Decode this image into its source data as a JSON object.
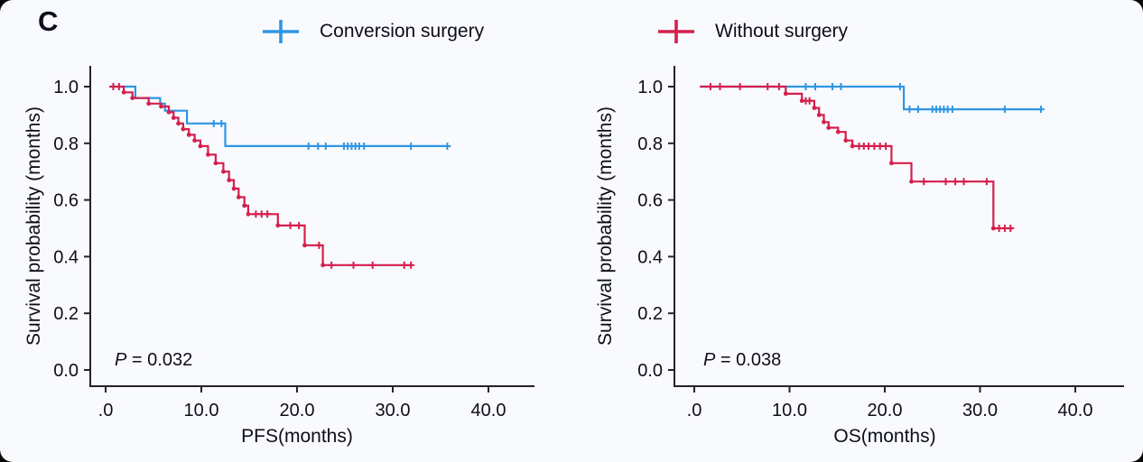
{
  "panel_label": "C",
  "colors": {
    "conversion": "#2e96e4",
    "without": "#d51f4d",
    "text": "#0d0d1c",
    "axis": "#23232e",
    "background": "#f9fafd"
  },
  "legend": {
    "items": [
      {
        "id": "conversion",
        "label": "Conversion surgery"
      },
      {
        "id": "without",
        "label": "Without surgery"
      }
    ]
  },
  "chart_data": [
    {
      "type": "line",
      "subtype": "kaplan_meier_step",
      "title": "",
      "xlabel": "PFS(months)",
      "ylabel": "Survival probability (months)",
      "p_italic": "P",
      "p_rest": " = 0.032",
      "xlim": [
        0,
        40
      ],
      "ylim": [
        0,
        1.0
      ],
      "grid": false,
      "legend_position": "top",
      "xtick_labels": [
        ".0",
        "10.0",
        "20.0",
        "30.0",
        "40.0"
      ],
      "xtick_values": [
        0,
        10,
        20,
        30,
        40
      ],
      "ytick_labels": [
        "1.0",
        "0.8",
        "0.6",
        "0.4",
        "0.2",
        "0.0"
      ],
      "ytick_values": [
        1.0,
        0.8,
        0.6,
        0.4,
        0.2,
        0.0
      ],
      "series": [
        {
          "name": "Conversion surgery",
          "color_id": "conversion",
          "step_dots": false,
          "steps": [
            [
              0.4,
              1.0
            ],
            [
              3.1,
              0.96
            ],
            [
              5.7,
              0.94
            ],
            [
              6.2,
              0.915
            ],
            [
              8.5,
              0.87
            ],
            [
              12.5,
              0.79
            ]
          ],
          "end": 35.7,
          "censors": [
            [
              11.3,
              0.87
            ],
            [
              12.1,
              0.87
            ],
            [
              21.2,
              0.79
            ],
            [
              22.2,
              0.79
            ],
            [
              23.0,
              0.79
            ],
            [
              24.9,
              0.79
            ],
            [
              25.3,
              0.79
            ],
            [
              25.7,
              0.79
            ],
            [
              26.1,
              0.79
            ],
            [
              26.5,
              0.79
            ],
            [
              27.0,
              0.79
            ],
            [
              31.9,
              0.79
            ],
            [
              35.7,
              0.79
            ]
          ]
        },
        {
          "name": "Without surgery",
          "color_id": "without",
          "step_dots": true,
          "steps": [
            [
              0.4,
              1.0
            ],
            [
              1.9,
              0.98
            ],
            [
              2.8,
              0.96
            ],
            [
              4.5,
              0.94
            ],
            [
              5.8,
              0.93
            ],
            [
              6.6,
              0.91
            ],
            [
              7.1,
              0.89
            ],
            [
              7.6,
              0.87
            ],
            [
              8.1,
              0.85
            ],
            [
              8.7,
              0.83
            ],
            [
              9.3,
              0.81
            ],
            [
              9.9,
              0.79
            ],
            [
              10.7,
              0.76
            ],
            [
              11.5,
              0.73
            ],
            [
              12.3,
              0.7
            ],
            [
              12.9,
              0.67
            ],
            [
              13.4,
              0.64
            ],
            [
              13.9,
              0.61
            ],
            [
              14.5,
              0.58
            ],
            [
              14.9,
              0.55
            ],
            [
              18.0,
              0.51
            ],
            [
              20.8,
              0.44
            ],
            [
              22.7,
              0.37
            ]
          ],
          "end": 31.9,
          "censors": [
            [
              0.8,
              1.0
            ],
            [
              1.4,
              1.0
            ],
            [
              15.7,
              0.55
            ],
            [
              16.3,
              0.55
            ],
            [
              16.9,
              0.55
            ],
            [
              19.3,
              0.51
            ],
            [
              20.2,
              0.51
            ],
            [
              22.3,
              0.44
            ],
            [
              23.6,
              0.37
            ],
            [
              25.9,
              0.37
            ],
            [
              27.9,
              0.37
            ],
            [
              31.2,
              0.37
            ],
            [
              31.9,
              0.37
            ]
          ]
        }
      ]
    },
    {
      "type": "line",
      "subtype": "kaplan_meier_step",
      "title": "",
      "xlabel": "OS(months)",
      "ylabel": "Survival probability (months)",
      "p_italic": "P",
      "p_rest": " = 0.038",
      "xlim": [
        0,
        40
      ],
      "ylim": [
        0,
        1.0
      ],
      "grid": false,
      "legend_position": "top",
      "xtick_labels": [
        ".0",
        "10.0",
        "20.0",
        "30.0",
        "40.0"
      ],
      "xtick_values": [
        0,
        10,
        20,
        30,
        40
      ],
      "ytick_labels": [
        "1.0",
        "0.8",
        "0.6",
        "0.4",
        "0.2",
        "0.0"
      ],
      "ytick_values": [
        1.0,
        0.8,
        0.6,
        0.4,
        0.2,
        0.0
      ],
      "series": [
        {
          "name": "Conversion surgery",
          "color_id": "conversion",
          "step_dots": false,
          "steps": [
            [
              0.6,
              1.0
            ],
            [
              22.0,
              0.92
            ]
          ],
          "end": 36.4,
          "censors": [
            [
              11.7,
              1.0
            ],
            [
              12.7,
              1.0
            ],
            [
              14.5,
              1.0
            ],
            [
              15.4,
              1.0
            ],
            [
              21.6,
              1.0
            ],
            [
              22.6,
              0.92
            ],
            [
              23.5,
              0.92
            ],
            [
              25.0,
              0.92
            ],
            [
              25.4,
              0.92
            ],
            [
              25.8,
              0.92
            ],
            [
              26.2,
              0.92
            ],
            [
              26.6,
              0.92
            ],
            [
              27.1,
              0.92
            ],
            [
              32.6,
              0.92
            ],
            [
              36.4,
              0.92
            ]
          ]
        },
        {
          "name": "Without surgery",
          "color_id": "without",
          "step_dots": true,
          "steps": [
            [
              0.6,
              1.0
            ],
            [
              9.6,
              0.975
            ],
            [
              11.3,
              0.95
            ],
            [
              12.6,
              0.925
            ],
            [
              13.1,
              0.9
            ],
            [
              13.6,
              0.875
            ],
            [
              14.1,
              0.855
            ],
            [
              15.1,
              0.84
            ],
            [
              15.9,
              0.81
            ],
            [
              16.6,
              0.79
            ],
            [
              20.7,
              0.73
            ],
            [
              22.8,
              0.665
            ],
            [
              31.4,
              0.5
            ]
          ],
          "end": 33.5,
          "censors": [
            [
              1.7,
              1.0
            ],
            [
              2.7,
              1.0
            ],
            [
              4.8,
              1.0
            ],
            [
              7.7,
              1.0
            ],
            [
              8.9,
              1.0
            ],
            [
              11.7,
              0.95
            ],
            [
              12.1,
              0.95
            ],
            [
              17.3,
              0.79
            ],
            [
              17.8,
              0.79
            ],
            [
              18.3,
              0.79
            ],
            [
              18.9,
              0.79
            ],
            [
              19.5,
              0.79
            ],
            [
              20.1,
              0.79
            ],
            [
              24.1,
              0.665
            ],
            [
              26.4,
              0.665
            ],
            [
              27.4,
              0.665
            ],
            [
              28.3,
              0.665
            ],
            [
              30.7,
              0.665
            ],
            [
              32.0,
              0.5
            ],
            [
              32.6,
              0.5
            ],
            [
              33.2,
              0.5
            ]
          ]
        }
      ]
    }
  ]
}
